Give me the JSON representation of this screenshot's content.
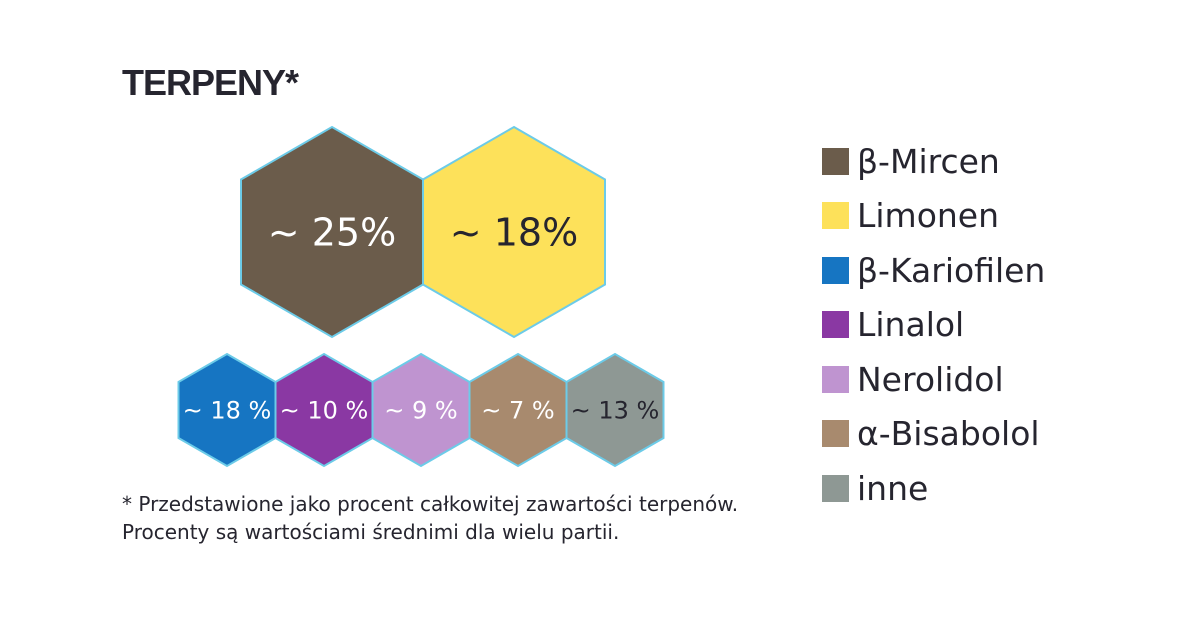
{
  "title": "TERPENY*",
  "footnote": "* Przedstawione jako procent całkowitej zawartości terpenów. Procenty są wartościami średnimi dla wielu partii.",
  "chart_data": {
    "type": "other",
    "title": "TERPENY*",
    "series": [
      {
        "name": "β-Mircen",
        "value": 25,
        "label": "~ 25%",
        "color": "#6b5c4b"
      },
      {
        "name": "Limonen",
        "value": 18,
        "label": "~ 18%",
        "color": "#fde15a"
      },
      {
        "name": "β-Kariofilen",
        "value": 18,
        "label": "~ 18 %",
        "color": "#1675c2"
      },
      {
        "name": "Linalol",
        "value": 10,
        "label": "~ 10 %",
        "color": "#8a38a3"
      },
      {
        "name": "Nerolidol",
        "value": 9,
        "label": "~ 9 %",
        "color": "#bf94d0"
      },
      {
        "name": "α-Bisabolol",
        "value": 7,
        "label": "~ 7 %",
        "color": "#a88a6e"
      },
      {
        "name": "inne",
        "value": 13,
        "label": "~ 13 %",
        "color": "#8e9894"
      }
    ],
    "legend_position": "right",
    "outline_color": "#6ccbe8",
    "text_color_dark": "#26252f",
    "text_color_light": "#ffffff"
  }
}
